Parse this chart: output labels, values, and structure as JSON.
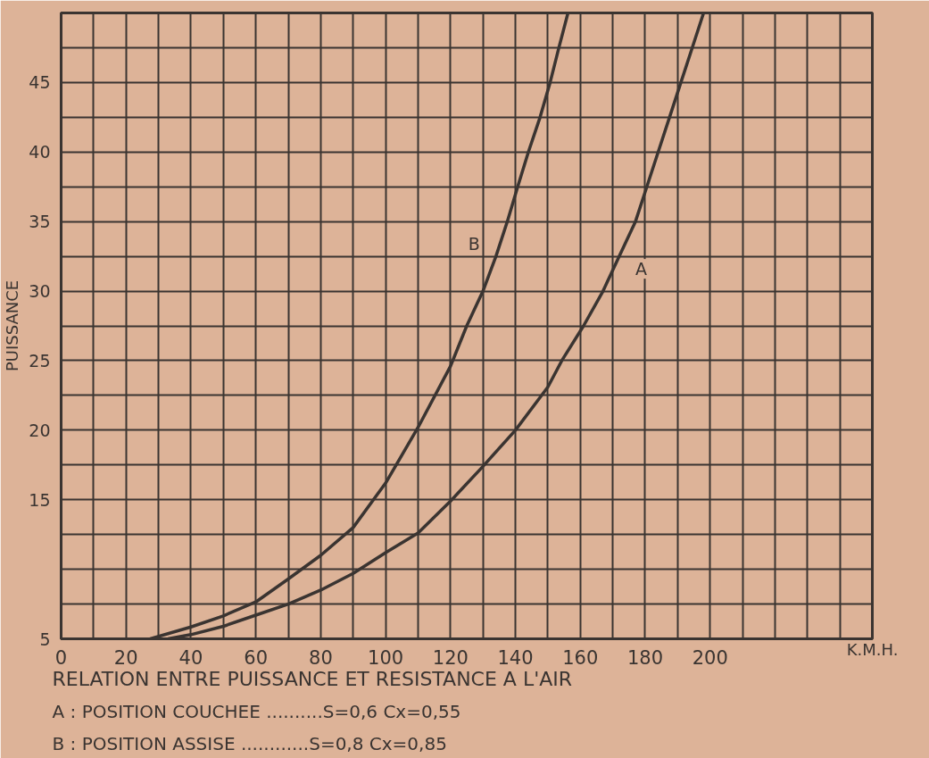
{
  "chart_data": {
    "type": "line",
    "title": "RELATION ENTRE PUISSANCE ET RESISTANCE A L'AIR",
    "xlabel": "K.M.H.",
    "ylabel": "PUISSANCE",
    "annotations": [
      "A : POSITION COUCHEE ..........S=0,6 Cx=0,55",
      "B : POSITION ASSISE ............S=0,8 Cx=0,85"
    ],
    "xlim": [
      0,
      250
    ],
    "xticks": [
      0,
      {
        "value": 10,
        "label": null
      },
      20,
      {
        "value": 30,
        "label": null
      },
      40,
      {
        "value": 50,
        "label": null
      },
      60,
      {
        "value": 70,
        "label": null
      },
      80,
      {
        "value": 90,
        "label": null
      },
      100,
      {
        "value": 110,
        "label": null
      },
      120,
      {
        "value": 130,
        "label": null
      },
      140,
      {
        "value": 150,
        "label": null
      },
      160,
      {
        "value": 170,
        "label": null
      },
      180,
      {
        "value": 190,
        "label": null
      },
      200,
      {
        "value": 210,
        "label": null
      },
      {
        "value": 220,
        "label": null
      },
      {
        "value": 230,
        "label": null
      },
      {
        "value": 240,
        "label": null
      }
    ],
    "ylim": [
      5,
      50
    ],
    "yticks": [
      5,
      {
        "value": 7.5,
        "label": null
      },
      {
        "value": 10,
        "label": null
      },
      {
        "value": 12.5,
        "label": null
      },
      15,
      {
        "value": 17.5,
        "label": null
      },
      20,
      {
        "value": 22.5,
        "label": null
      },
      25,
      {
        "value": 27.5,
        "label": null
      },
      30,
      {
        "value": 32.5,
        "label": null
      },
      35,
      {
        "value": 37.5,
        "label": null
      },
      40,
      {
        "value": 42.5,
        "label": null
      },
      45,
      {
        "value": 47.5,
        "label": null
      }
    ],
    "grid": true,
    "series": [
      {
        "name": "A",
        "color": "#3a3431",
        "x": [
          33,
          40,
          50,
          60,
          70,
          80,
          90,
          100,
          110,
          120,
          130,
          140,
          150,
          154.3,
          161,
          167,
          172,
          177,
          180.5,
          184,
          187.5,
          191,
          194.5,
          198
        ],
        "values": [
          5,
          5.3,
          5.9,
          6.7,
          7.5,
          8.5,
          9.7,
          11.2,
          12.6,
          14.9,
          17.4,
          20,
          23.1,
          25,
          27.5,
          30,
          32.5,
          35,
          37.5,
          40,
          42.5,
          45,
          47.5,
          50
        ]
      },
      {
        "name": "B",
        "color": "#3a3431",
        "x": [
          27.5,
          40,
          50,
          60,
          70,
          80,
          90,
          100,
          110,
          120,
          125,
          130,
          134,
          137.5,
          140.7,
          144,
          147.6,
          150.7,
          153.4,
          156.2
        ],
        "values": [
          5,
          5.85,
          6.65,
          7.65,
          9.3,
          11,
          13,
          16.2,
          20.2,
          24.6,
          27.5,
          30,
          32.5,
          35,
          37.5,
          40,
          42.5,
          45,
          47.5,
          50
        ]
      }
    ]
  }
}
